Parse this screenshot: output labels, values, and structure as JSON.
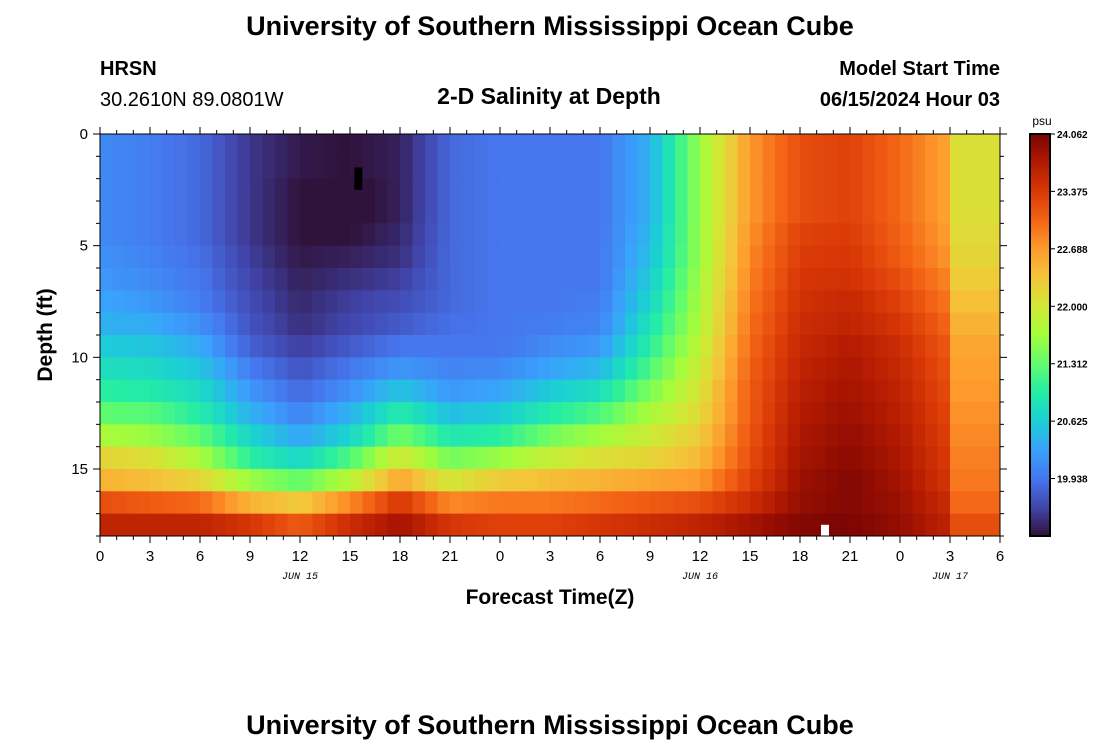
{
  "header": {
    "title": "University of Southern Mississippi Ocean Cube",
    "station": "HRSN",
    "coords": "30.2610N  89.0801W",
    "plot_title": "2-D Salinity at Depth",
    "model_label": "Model Start Time",
    "model_time": "06/15/2024 Hour 03"
  },
  "footer": {
    "title": "University of Southern Mississippi Ocean Cube"
  },
  "colors": {
    "palette": [
      "#30123b",
      "#4145ab",
      "#4675ed",
      "#39a2fc",
      "#1bcfd4",
      "#24eca6",
      "#61fc6c",
      "#a4fc3b",
      "#d1e834",
      "#f3c63a",
      "#fe9b2d",
      "#f36315",
      "#d93806",
      "#b11901",
      "#7a0403"
    ]
  },
  "chart_data": {
    "type": "heatmap",
    "title": "2-D Salinity at Depth",
    "xlabel": "Forecast Time(Z)",
    "ylabel": "Depth (ft)",
    "x_hours_from_jun15_00z": [
      0,
      51
    ],
    "xlim": [
      0,
      54
    ],
    "ylim": [
      0,
      18
    ],
    "x_tick_labels": [
      "0",
      "3",
      "6",
      "9",
      "12",
      "15",
      "18",
      "21",
      "0",
      "3",
      "6",
      "9",
      "12",
      "15",
      "18",
      "21",
      "0",
      "3",
      "6"
    ],
    "y_tick_values": [
      0,
      5,
      10,
      15
    ],
    "y_tick_labels": [
      "0",
      "5",
      "10",
      "15"
    ],
    "date_labels": [
      {
        "hour": 12,
        "label": "JUN 15"
      },
      {
        "hour": 36,
        "label": "JUN 16"
      },
      {
        "hour": 51,
        "label": "JUN 17"
      }
    ],
    "colorbar": {
      "unit": "psu",
      "min": 19.25,
      "max": 24.062,
      "tick_values": [
        24.062,
        23.375,
        22.688,
        22.0,
        21.312,
        20.625,
        19.938
      ],
      "tick_labels": [
        "24.062",
        "23.375",
        "22.688",
        "22.000",
        "21.312",
        "20.625",
        "19.938"
      ]
    },
    "depth_levels_ft": [
      0,
      1,
      2,
      3,
      4,
      5,
      6,
      7,
      8,
      9,
      10,
      11,
      12,
      13,
      14,
      15,
      16,
      17,
      18
    ],
    "profile_times_hours": [
      0,
      3,
      6,
      9,
      12,
      15,
      18,
      21,
      24,
      27,
      30,
      33,
      36,
      39,
      42,
      45,
      48,
      51,
      54
    ],
    "salinity_profiles": [
      [
        20.1,
        20.1,
        20.1,
        20.1,
        20.1,
        20.15,
        20.2,
        20.3,
        20.4,
        20.6,
        20.8,
        21.0,
        21.3,
        21.7,
        22.2,
        22.5,
        23.2,
        23.6,
        23.6
      ],
      [
        20.0,
        20.0,
        20.0,
        20.0,
        20.0,
        20.05,
        20.1,
        20.2,
        20.35,
        20.55,
        20.75,
        20.95,
        21.25,
        21.6,
        22.1,
        22.4,
        23.1,
        23.6,
        23.6
      ],
      [
        19.85,
        19.85,
        19.85,
        19.85,
        19.85,
        19.9,
        19.95,
        20.0,
        20.15,
        20.35,
        20.55,
        20.75,
        20.95,
        21.3,
        21.7,
        22.2,
        23.0,
        23.6,
        23.6
      ],
      [
        19.5,
        19.5,
        19.5,
        19.5,
        19.5,
        19.55,
        19.6,
        19.65,
        19.7,
        19.8,
        20.0,
        20.2,
        20.4,
        20.7,
        21.0,
        21.6,
        22.5,
        23.4,
        23.4
      ],
      [
        19.3,
        19.3,
        19.25,
        19.25,
        19.25,
        19.3,
        19.35,
        19.4,
        19.45,
        19.55,
        19.7,
        19.85,
        20.05,
        20.3,
        20.7,
        21.3,
        22.3,
        23.1,
        23.1
      ],
      [
        19.25,
        19.25,
        19.2,
        19.2,
        19.25,
        19.35,
        19.45,
        19.55,
        19.6,
        19.75,
        19.95,
        20.15,
        20.4,
        20.7,
        21.2,
        21.8,
        22.8,
        23.5,
        23.5
      ],
      [
        19.35,
        19.35,
        19.35,
        19.35,
        19.4,
        19.45,
        19.55,
        19.65,
        19.75,
        19.95,
        20.2,
        20.55,
        20.95,
        21.4,
        22.0,
        22.6,
        23.4,
        23.8,
        23.8
      ],
      [
        19.85,
        19.85,
        19.85,
        19.85,
        19.85,
        19.85,
        19.85,
        19.85,
        19.9,
        19.95,
        20.05,
        20.2,
        20.5,
        20.9,
        21.4,
        22.0,
        22.8,
        23.4,
        23.4
      ],
      [
        19.95,
        19.95,
        19.95,
        19.95,
        19.95,
        19.95,
        19.95,
        19.95,
        19.95,
        19.95,
        20.1,
        20.3,
        20.6,
        21.0,
        21.6,
        22.3,
        22.9,
        23.3,
        23.3
      ],
      [
        19.95,
        19.95,
        19.95,
        19.95,
        19.95,
        19.95,
        19.95,
        19.95,
        20.0,
        20.1,
        20.3,
        20.6,
        20.95,
        21.4,
        21.9,
        22.4,
        22.9,
        23.3,
        23.3
      ],
      [
        19.95,
        19.95,
        19.95,
        19.95,
        19.95,
        19.95,
        19.95,
        20.0,
        20.05,
        20.2,
        20.45,
        20.8,
        21.2,
        21.65,
        22.1,
        22.5,
        23.0,
        23.4,
        23.4
      ],
      [
        20.4,
        20.4,
        20.4,
        20.4,
        20.45,
        20.5,
        20.6,
        20.7,
        20.85,
        21.0,
        21.2,
        21.45,
        21.7,
        21.95,
        22.2,
        22.6,
        23.1,
        23.5,
        23.5
      ],
      [
        21.6,
        21.6,
        21.6,
        21.6,
        21.6,
        21.6,
        21.65,
        21.7,
        21.75,
        21.85,
        21.95,
        22.05,
        22.15,
        22.3,
        22.45,
        22.7,
        23.2,
        23.6,
        23.6
      ],
      [
        22.7,
        22.7,
        22.7,
        22.7,
        22.75,
        22.8,
        22.85,
        22.9,
        22.95,
        23.0,
        23.05,
        23.1,
        23.1,
        23.15,
        23.2,
        23.3,
        23.5,
        23.8,
        23.8
      ],
      [
        23.2,
        23.2,
        23.2,
        23.2,
        23.3,
        23.35,
        23.4,
        23.45,
        23.5,
        23.55,
        23.6,
        23.65,
        23.7,
        23.75,
        23.8,
        23.85,
        23.9,
        24.0,
        24.0
      ],
      [
        23.3,
        23.3,
        23.3,
        23.3,
        23.35,
        23.4,
        23.45,
        23.55,
        23.6,
        23.7,
        23.75,
        23.8,
        23.85,
        23.9,
        23.95,
        24.0,
        24.0,
        24.05,
        24.05
      ],
      [
        23.0,
        23.0,
        23.0,
        23.0,
        23.05,
        23.1,
        23.2,
        23.3,
        23.4,
        23.5,
        23.55,
        23.6,
        23.65,
        23.7,
        23.75,
        23.8,
        23.85,
        23.9,
        23.9
      ],
      [
        22.6,
        22.6,
        22.6,
        22.6,
        22.65,
        22.7,
        22.8,
        22.9,
        23.0,
        23.1,
        23.15,
        23.2,
        23.25,
        23.3,
        23.35,
        23.4,
        23.5,
        23.6,
        23.6
      ],
      [
        22.1,
        22.1,
        22.1,
        22.1,
        22.15,
        22.2,
        22.3,
        22.4,
        22.5,
        22.6,
        22.65,
        22.7,
        22.75,
        22.8,
        22.85,
        22.9,
        23.0,
        23.2,
        23.2
      ]
    ],
    "markers": [
      {
        "hour": 15.5,
        "depth_start": 1.5,
        "depth_end": 2.5,
        "label": "surface obs",
        "color": "#000000"
      },
      {
        "hour": 43.5,
        "depth_start": 17.5,
        "depth_end": 18.0,
        "label": "bottom obs",
        "color": "#ffffff"
      }
    ]
  }
}
